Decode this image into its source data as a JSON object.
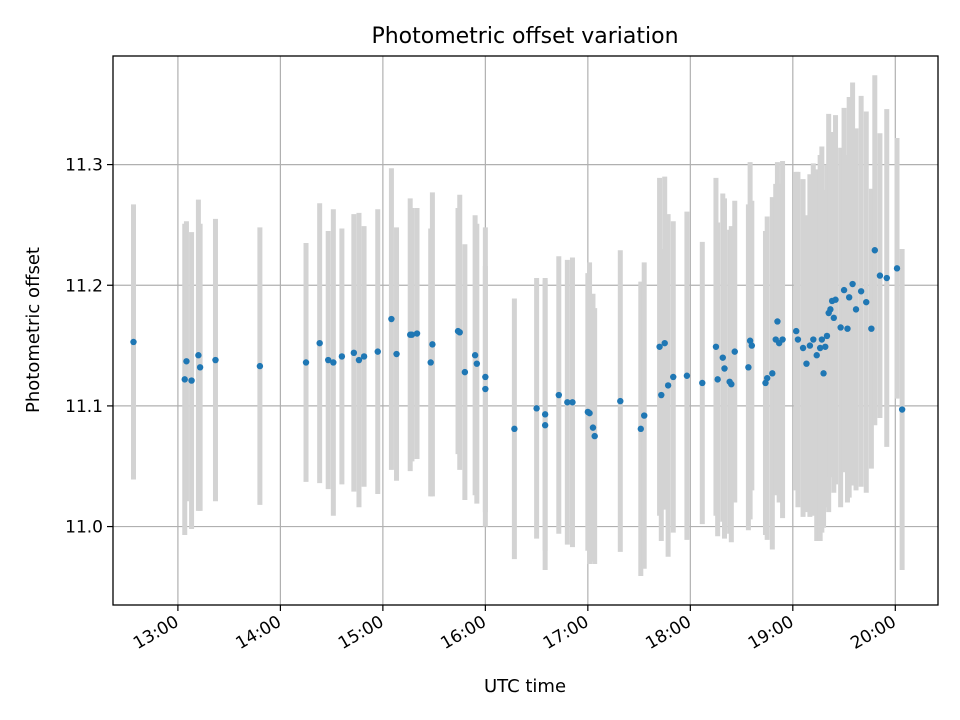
{
  "chart_data": {
    "type": "scatter",
    "title": "Photometric offset variation",
    "xlabel": "UTC time",
    "ylabel": "Photometric offset",
    "x_ticks": [
      "13:00",
      "14:00",
      "15:00",
      "16:00",
      "17:00",
      "18:00",
      "19:00",
      "20:00"
    ],
    "y_ticks": [
      "11.0",
      "11.1",
      "11.2",
      "11.3"
    ],
    "xlim": [
      "12:22",
      "20:25"
    ],
    "ylim": [
      10.935,
      11.39
    ],
    "grid": true,
    "colors": {
      "points": "#1f77b4",
      "error_bars": "#d3d3d3"
    },
    "series": [
      {
        "x": [
          "12:34",
          "13:04",
          "13:05",
          "13:08",
          "13:12",
          "13:13",
          "13:22",
          "13:48",
          "14:15",
          "14:23",
          "14:28",
          "14:31",
          "14:36",
          "14:43",
          "14:46",
          "14:49",
          "14:57",
          "15:05",
          "15:08",
          "15:16",
          "15:17",
          "15:20",
          "15:28",
          "15:29",
          "15:44",
          "15:45",
          "15:48",
          "15:54",
          "15:55",
          "16:00",
          "16:00",
          "16:17",
          "16:30",
          "16:35",
          "16:35",
          "16:43",
          "16:48",
          "16:51",
          "17:00",
          "17:01",
          "17:03",
          "17:04",
          "17:19",
          "17:31",
          "17:33",
          "17:42",
          "17:43",
          "17:45",
          "17:47",
          "17:50",
          "17:58",
          "18:07",
          "18:15",
          "18:16",
          "18:19",
          "18:20",
          "18:23",
          "18:24",
          "18:26",
          "18:34",
          "18:35",
          "18:36",
          "18:44",
          "18:45",
          "18:48",
          "18:50",
          "18:51",
          "18:52",
          "18:54",
          "19:02",
          "19:03",
          "19:06",
          "19:08",
          "19:10",
          "19:12",
          "19:14",
          "19:16",
          "19:17",
          "19:18",
          "19:19",
          "19:20",
          "19:21",
          "19:22",
          "19:23",
          "19:24",
          "19:25",
          "19:28",
          "19:30",
          "19:32",
          "19:33",
          "19:35",
          "19:37",
          "19:40",
          "19:43",
          "19:46",
          "19:48",
          "19:51",
          "19:55",
          "20:01",
          "20:04"
        ],
        "y": [
          11.153,
          11.122,
          11.137,
          11.121,
          11.142,
          11.132,
          11.138,
          11.133,
          11.136,
          11.152,
          11.138,
          11.136,
          11.141,
          11.144,
          11.138,
          11.141,
          11.145,
          11.172,
          11.143,
          11.159,
          11.159,
          11.16,
          11.136,
          11.151,
          11.162,
          11.161,
          11.128,
          11.142,
          11.135,
          11.124,
          11.114,
          11.081,
          11.098,
          11.093,
          11.084,
          11.109,
          11.103,
          11.103,
          11.095,
          11.094,
          11.082,
          11.075,
          11.104,
          11.081,
          11.092,
          11.149,
          11.109,
          11.152,
          11.117,
          11.124,
          11.125,
          11.119,
          11.149,
          11.122,
          11.14,
          11.131,
          11.12,
          11.118,
          11.145,
          11.132,
          11.154,
          11.15,
          11.119,
          11.123,
          11.127,
          11.155,
          11.17,
          11.152,
          11.155,
          11.162,
          11.155,
          11.148,
          11.135,
          11.15,
          11.155,
          11.142,
          11.148,
          11.155,
          11.127,
          11.149,
          11.158,
          11.177,
          11.18,
          11.187,
          11.173,
          11.188,
          11.165,
          11.196,
          11.164,
          11.19,
          11.201,
          11.18,
          11.195,
          11.186,
          11.164,
          11.229,
          11.208,
          11.206,
          11.214,
          11.097
        ],
        "err": [
          0.114,
          0.129,
          0.116,
          0.123,
          0.129,
          0.119,
          0.117,
          0.115,
          0.099,
          0.116,
          0.107,
          0.127,
          0.106,
          0.115,
          0.122,
          0.108,
          0.118,
          0.125,
          0.105,
          0.113,
          0.105,
          0.104,
          0.111,
          0.126,
          0.102,
          0.114,
          0.106,
          0.116,
          0.116,
          0.124,
          0.102,
          0.108,
          0.108,
          0.113,
          0.12,
          0.115,
          0.118,
          0.12,
          0.115,
          0.125,
          0.111,
          0.106,
          0.125,
          0.122,
          0.127,
          0.14,
          0.121,
          0.138,
          0.142,
          0.129,
          0.136,
          0.117,
          0.14,
          0.13,
          0.136,
          0.141,
          0.126,
          0.131,
          0.125,
          0.135,
          0.148,
          0.12,
          0.126,
          0.134,
          0.146,
          0.129,
          0.132,
          0.132,
          0.148,
          0.132,
          0.139,
          0.14,
          0.123,
          0.142,
          0.146,
          0.154,
          0.16,
          0.16,
          0.128,
          0.13,
          0.142,
          0.165,
          0.139,
          0.14,
          0.145,
          0.153,
          0.149,
          0.151,
          0.144,
          0.166,
          0.167,
          0.15,
          0.162,
          0.158,
          0.116,
          0.145,
          0.118,
          0.14,
          0.108,
          0.133
        ]
      }
    ]
  }
}
